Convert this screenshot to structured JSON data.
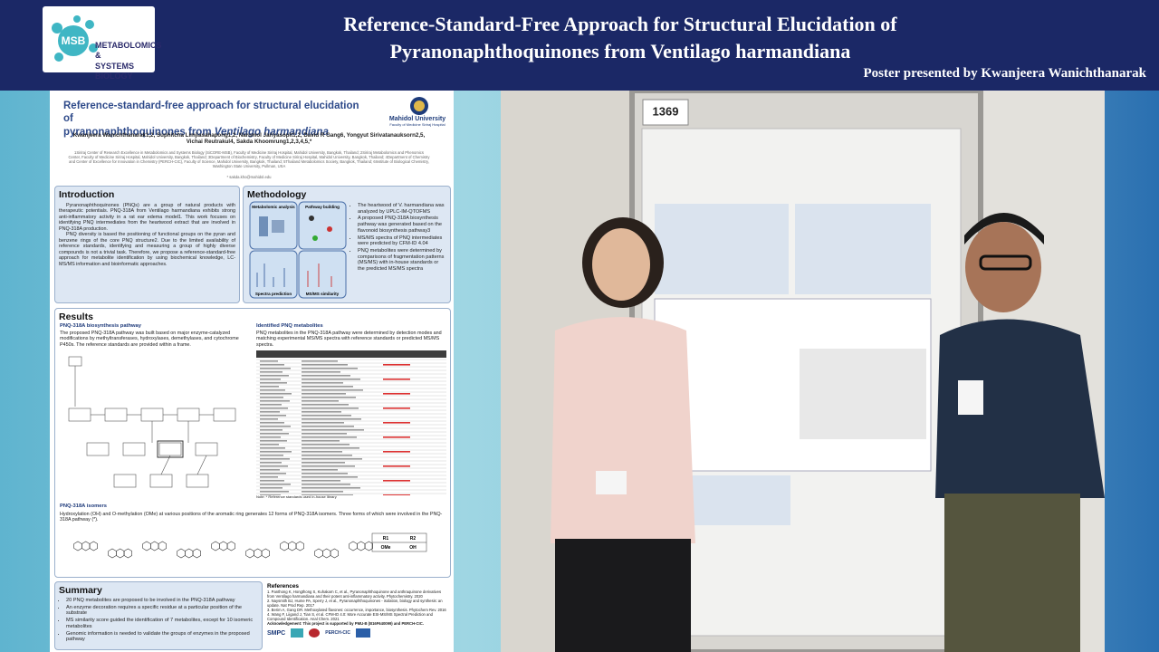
{
  "header": {
    "logo_abbr": "MSB",
    "logo_lines": [
      "METABOLOMICS &",
      "SYSTEMS BIOLOGY"
    ],
    "title_lines": [
      "Reference-Standard-Free Approach for Structural Elucidation of",
      "Pyranonaphthoquinones from Ventilago harmandiana"
    ],
    "presenter": "Poster presented by Kwanjeera Wanichthanarak"
  },
  "poster": {
    "title_line1": "Reference-standard-free approach for structural elucidation of",
    "title_line2": "pyranonaphthoquinones from ",
    "title_species": "Ventilago harmandiana",
    "university": "Mahidol University",
    "faculty": "Faculty of Medicine Siriraj Hospital",
    "authors": "Kwanjeera Wanichthanarak1,2, Suphitcha Limjiasahapong1,2, Narumol Jariyasopit1,2, David R Gang6, Yongyut Sirivatanauksorn2,5, Vichai Reutrakul4, Sakda Khoomrung1,2,3,4,5,*",
    "affiliations": "1Siriraj Center of Research Excellence in Metabolomics and Systems Biology (SiCORE-MSB), Faculty of Medicine Siriraj Hospital, Mahidol University, Bangkok, Thailand; 2Siriraj Metabolomics and Phenomics Center, Faculty of Medicine Siriraj Hospital, Mahidol University, Bangkok, Thailand; 3Department of Biochemistry, Faculty of Medicine Siriraj Hospital, Mahidol University, Bangkok, Thailand; 4Department of Chemistry and Center of Excellence for Innovation in Chemistry (PERCH-CIC), Faculty of Science, Mahidol University, Bangkok, Thailand; 5Thailand Metabolomics Society, Bangkok, Thailand; 6Institute of Biological Chemistry, Washington State University, Pullman, USA",
    "email": "* sakda.kho@mahidol.edu",
    "intro": {
      "heading": "Introduction",
      "paragraphs": [
        "Pyranonaphthoquinones (PNQs) are a group of natural products with therapeutic potentials. PNQ-318A from Ventilago harmandiana exhibits strong anti-inflammatory activity in a rat ear edema model1. This work focuses on identifying PNQ intermediates from the heartwood extract that are involved in PNQ-318A production.",
        "PNQ diversity is based the positioning of functional groups on the pyran and benzene rings of the core PNQ structure2. Due to the limited availability of reference standards, identifying and measuring a group of highly diverse compounds is not a trivial task. Therefore, we propose a reference-standard-free approach for metabolite identification by using biochemical knowledge, LC-MS/MS information and bioinformatic approaches."
      ]
    },
    "methods": {
      "heading": "Methodology",
      "diagram_labels": [
        "Metabolomic analysis",
        "Pathway building",
        "Spectra prediction",
        "MS/MS similarity"
      ],
      "bullets": [
        "The heartwood of V. harmandiana was analyzed by UPLC-IM-QTOFMS",
        "A proposed PNQ-318A biosynthesis pathway was generated based on the flavonoid biosynthesis pathway3",
        "MS/MS spectra of PNQ intermediates were predicted by CFM-ID 4.04",
        "PNQ metabolites were determined by comparisons of fragmentation patterns (MS/MS) with in-house standards or the predicted MS/MS spectra"
      ]
    },
    "results": {
      "heading": "Results",
      "pathway_heading": "PNQ-318A biosynthesis pathway",
      "pathway_text": "The proposed PNQ-318A pathway was built based on major enzyme-catalyzed modifications by methyltransferases, hydroxylases, demethylases, and cytochrome P450s. The reference standards are provided within a frame.",
      "identified_heading": "Identified PNQ metabolites",
      "identified_text": "PNQ metabolites in the PNQ-318A pathway were determined by detection modes and matching experimental MS/MS spectra with reference standards or predicted MS/MS spectra.",
      "isomers_heading": "PNQ-318A isomers",
      "isomers_text": "Hydroxylation (OH) and O-methylation (OMe) at various positions of the aromatic ring generates 12 forms of PNQ-318A isomers. Three forms of which were involved in the PNQ-318A pathway (*).",
      "table_note": "Note: * Reference standards used in-house library",
      "substituents": [
        "R1",
        "R2",
        "OMe",
        "OH"
      ]
    },
    "summary": {
      "heading": "Summary",
      "bullets": [
        "20 PNQ metabolites are proposed to be involved in the PNQ-318A pathway",
        "An enzyme decoration requires a specific residue at a particular position of the substrate",
        "MS similarity score guided the identification of 7 metabolites, except for 10 isomeric metabolites",
        "Genomic information is needed to validate the groups of enzymes in the proposed pathway"
      ]
    },
    "references": {
      "heading": "References",
      "items": [
        "1. Panthong K, Hongthong S, Kuhakarn C, et al., Pyranonaphthoquinone and anthraquinone derivatives from Ventilago harmandiana and their potent anti-inflammatory activity. Phytochemistry. 2020",
        "2. Naysmith BJ, Hume PA, Sperry J, et al., Pyranonaphthoquinones - isolation, biology and synthesis: an update. Nat Prod Rep. 2017",
        "3. Berim A, Gang DR. Methoxylated flavones: occurrence, importance, biosynthesis. Phytochem Rev. 2016",
        "4. Wang F, Liigand J, Tian S, et al. CFM-ID 4.0: More Accurate ESI-MS/MS Spectral Prediction and Compound Identification. Anal Chem. 2021"
      ],
      "acknowledgement": "Acknowledgement: This project is supported by PMU-B (B16F640099) and PERCH-CIC."
    },
    "sponsors": [
      "SMPC",
      "PERCH-CIC"
    ]
  },
  "photo": {
    "board_number": "1369"
  }
}
